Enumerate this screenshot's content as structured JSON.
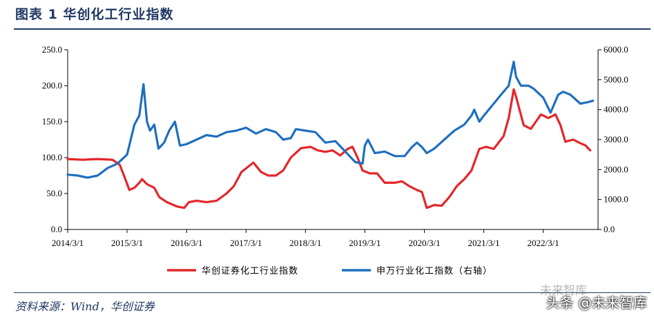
{
  "title": "图表 1 华创化工行业指数",
  "source": "资料来源：Wind，华创证券",
  "watermark": "头条 @未来智库",
  "watermark_mark": "未来智库",
  "chart_data": {
    "type": "line",
    "x_ticks": [
      "2014/3/1",
      "2015/3/1",
      "2016/3/1",
      "2017/3/1",
      "2018/3/1",
      "2019/3/1",
      "2020/3/1",
      "2021/3/1",
      "2022/3/1"
    ],
    "x_range": [
      "2014/3/1",
      "2023/2/1"
    ],
    "y_left": {
      "ylim": [
        0,
        250
      ],
      "ticks": [
        "0.0",
        "50.0",
        "100.0",
        "150.0",
        "200.0",
        "250.0"
      ]
    },
    "y_right": {
      "ylim": [
        0,
        6000
      ],
      "ticks": [
        "0.0",
        "1000.0",
        "2000.0",
        "3000.0",
        "4000.0",
        "5000.0",
        "6000.0"
      ]
    },
    "grid": false,
    "legend_position": "bottom",
    "series": [
      {
        "name": "华创证券化工行业指数",
        "axis": "left",
        "color": "#e3262a",
        "points": [
          [
            "2014/3/1",
            98
          ],
          [
            "2014/6/1",
            97
          ],
          [
            "2014/9/1",
            98
          ],
          [
            "2014/12/1",
            97
          ],
          [
            "2015/1/15",
            90
          ],
          [
            "2015/2/15",
            72
          ],
          [
            "2015/3/15",
            55
          ],
          [
            "2015/4/15",
            58
          ],
          [
            "2015/5/15",
            65
          ],
          [
            "2015/6/1",
            70
          ],
          [
            "2015/7/1",
            63
          ],
          [
            "2015/8/15",
            58
          ],
          [
            "2015/9/15",
            45
          ],
          [
            "2015/11/1",
            38
          ],
          [
            "2016/1/1",
            32
          ],
          [
            "2016/2/15",
            30
          ],
          [
            "2016/3/15",
            38
          ],
          [
            "2016/5/1",
            40
          ],
          [
            "2016/7/1",
            38
          ],
          [
            "2016/9/1",
            40
          ],
          [
            "2016/11/1",
            50
          ],
          [
            "2016/12/15",
            60
          ],
          [
            "2017/2/1",
            80
          ],
          [
            "2017/3/1",
            85
          ],
          [
            "2017/4/15",
            93
          ],
          [
            "2017/6/1",
            80
          ],
          [
            "2017/7/15",
            75
          ],
          [
            "2017/9/1",
            75
          ],
          [
            "2017/10/15",
            82
          ],
          [
            "2017/12/1",
            100
          ],
          [
            "2018/2/1",
            113
          ],
          [
            "2018/4/1",
            115
          ],
          [
            "2018/5/15",
            110
          ],
          [
            "2018/7/1",
            108
          ],
          [
            "2018/8/15",
            110
          ],
          [
            "2018/10/1",
            103
          ],
          [
            "2018/11/15",
            112
          ],
          [
            "2018/12/15",
            115
          ],
          [
            "2019/1/15",
            100
          ],
          [
            "2019/2/15",
            82
          ],
          [
            "2019/4/1",
            78
          ],
          [
            "2019/5/15",
            78
          ],
          [
            "2019/7/1",
            65
          ],
          [
            "2019/9/1",
            65
          ],
          [
            "2019/10/15",
            67
          ],
          [
            "2019/12/1",
            60
          ],
          [
            "2020/1/15",
            55
          ],
          [
            "2020/2/15",
            52
          ],
          [
            "2020/3/15",
            30
          ],
          [
            "2020/5/1",
            34
          ],
          [
            "2020/6/15",
            33
          ],
          [
            "2020/8/1",
            45
          ],
          [
            "2020/9/15",
            60
          ],
          [
            "2020/11/1",
            70
          ],
          [
            "2020/12/15",
            82
          ],
          [
            "2021/2/1",
            112
          ],
          [
            "2021/3/15",
            115
          ],
          [
            "2021/5/1",
            112
          ],
          [
            "2021/7/1",
            130
          ],
          [
            "2021/8/1",
            155
          ],
          [
            "2021/9/1",
            195
          ],
          [
            "2021/9/15",
            185
          ],
          [
            "2021/11/1",
            145
          ],
          [
            "2021/12/15",
            140
          ],
          [
            "2022/1/15",
            150
          ],
          [
            "2022/2/15",
            160
          ],
          [
            "2022/4/1",
            155
          ],
          [
            "2022/5/15",
            160
          ],
          [
            "2022/6/15",
            145
          ],
          [
            "2022/7/15",
            122
          ],
          [
            "2022/9/1",
            125
          ],
          [
            "2022/10/15",
            120
          ],
          [
            "2022/11/15",
            117
          ],
          [
            "2022/12/15",
            110
          ]
        ]
      },
      {
        "name": "申万行业化工指数（右轴）",
        "axis": "right",
        "color": "#1f6fbf",
        "points": [
          [
            "2014/3/1",
            1830
          ],
          [
            "2014/5/1",
            1800
          ],
          [
            "2014/7/1",
            1730
          ],
          [
            "2014/9/1",
            1800
          ],
          [
            "2014/11/1",
            2050
          ],
          [
            "2015/1/1",
            2200
          ],
          [
            "2015/3/1",
            2500
          ],
          [
            "2015/4/15",
            3500
          ],
          [
            "2015/5/15",
            3800
          ],
          [
            "2015/6/10",
            4850
          ],
          [
            "2015/7/1",
            3600
          ],
          [
            "2015/7/20",
            3300
          ],
          [
            "2015/8/15",
            3500
          ],
          [
            "2015/9/10",
            2700
          ],
          [
            "2015/10/15",
            2900
          ],
          [
            "2015/11/15",
            3300
          ],
          [
            "2015/12/20",
            3600
          ],
          [
            "2016/1/20",
            2800
          ],
          [
            "2016/3/1",
            2850
          ],
          [
            "2016/5/1",
            3000
          ],
          [
            "2016/7/1",
            3150
          ],
          [
            "2016/9/1",
            3100
          ],
          [
            "2016/11/1",
            3250
          ],
          [
            "2017/1/1",
            3300
          ],
          [
            "2017/3/1",
            3400
          ],
          [
            "2017/5/1",
            3200
          ],
          [
            "2017/7/1",
            3350
          ],
          [
            "2017/9/1",
            3250
          ],
          [
            "2017/10/15",
            3000
          ],
          [
            "2017/12/1",
            3050
          ],
          [
            "2018/1/1",
            3350
          ],
          [
            "2018/3/1",
            3300
          ],
          [
            "2018/5/1",
            3250
          ],
          [
            "2018/7/1",
            2900
          ],
          [
            "2018/9/1",
            2950
          ],
          [
            "2018/11/1",
            2600
          ],
          [
            "2019/1/1",
            2250
          ],
          [
            "2019/2/15",
            2200
          ],
          [
            "2019/3/1",
            2800
          ],
          [
            "2019/3/20",
            3000
          ],
          [
            "2019/5/1",
            2550
          ],
          [
            "2019/7/1",
            2600
          ],
          [
            "2019/9/1",
            2450
          ],
          [
            "2019/11/1",
            2450
          ],
          [
            "2019/12/15",
            2750
          ],
          [
            "2020/1/15",
            2900
          ],
          [
            "2020/2/15",
            2750
          ],
          [
            "2020/3/15",
            2550
          ],
          [
            "2020/5/1",
            2700
          ],
          [
            "2020/7/1",
            3000
          ],
          [
            "2020/9/1",
            3300
          ],
          [
            "2020/11/1",
            3500
          ],
          [
            "2020/12/15",
            3800
          ],
          [
            "2021/1/1",
            4000
          ],
          [
            "2021/2/1",
            3600
          ],
          [
            "2021/3/1",
            3800
          ],
          [
            "2021/5/1",
            4200
          ],
          [
            "2021/6/15",
            4500
          ],
          [
            "2021/8/1",
            4800
          ],
          [
            "2021/9/1",
            5600
          ],
          [
            "2021/9/15",
            5100
          ],
          [
            "2021/10/15",
            4800
          ],
          [
            "2021/12/1",
            4800
          ],
          [
            "2022/1/1",
            4700
          ],
          [
            "2022/3/1",
            4400
          ],
          [
            "2022/4/15",
            3900
          ],
          [
            "2022/6/1",
            4500
          ],
          [
            "2022/7/1",
            4600
          ],
          [
            "2022/8/15",
            4500
          ],
          [
            "2022/10/15",
            4200
          ],
          [
            "2022/12/1",
            4250
          ],
          [
            "2023/1/1",
            4300
          ]
        ]
      }
    ]
  }
}
